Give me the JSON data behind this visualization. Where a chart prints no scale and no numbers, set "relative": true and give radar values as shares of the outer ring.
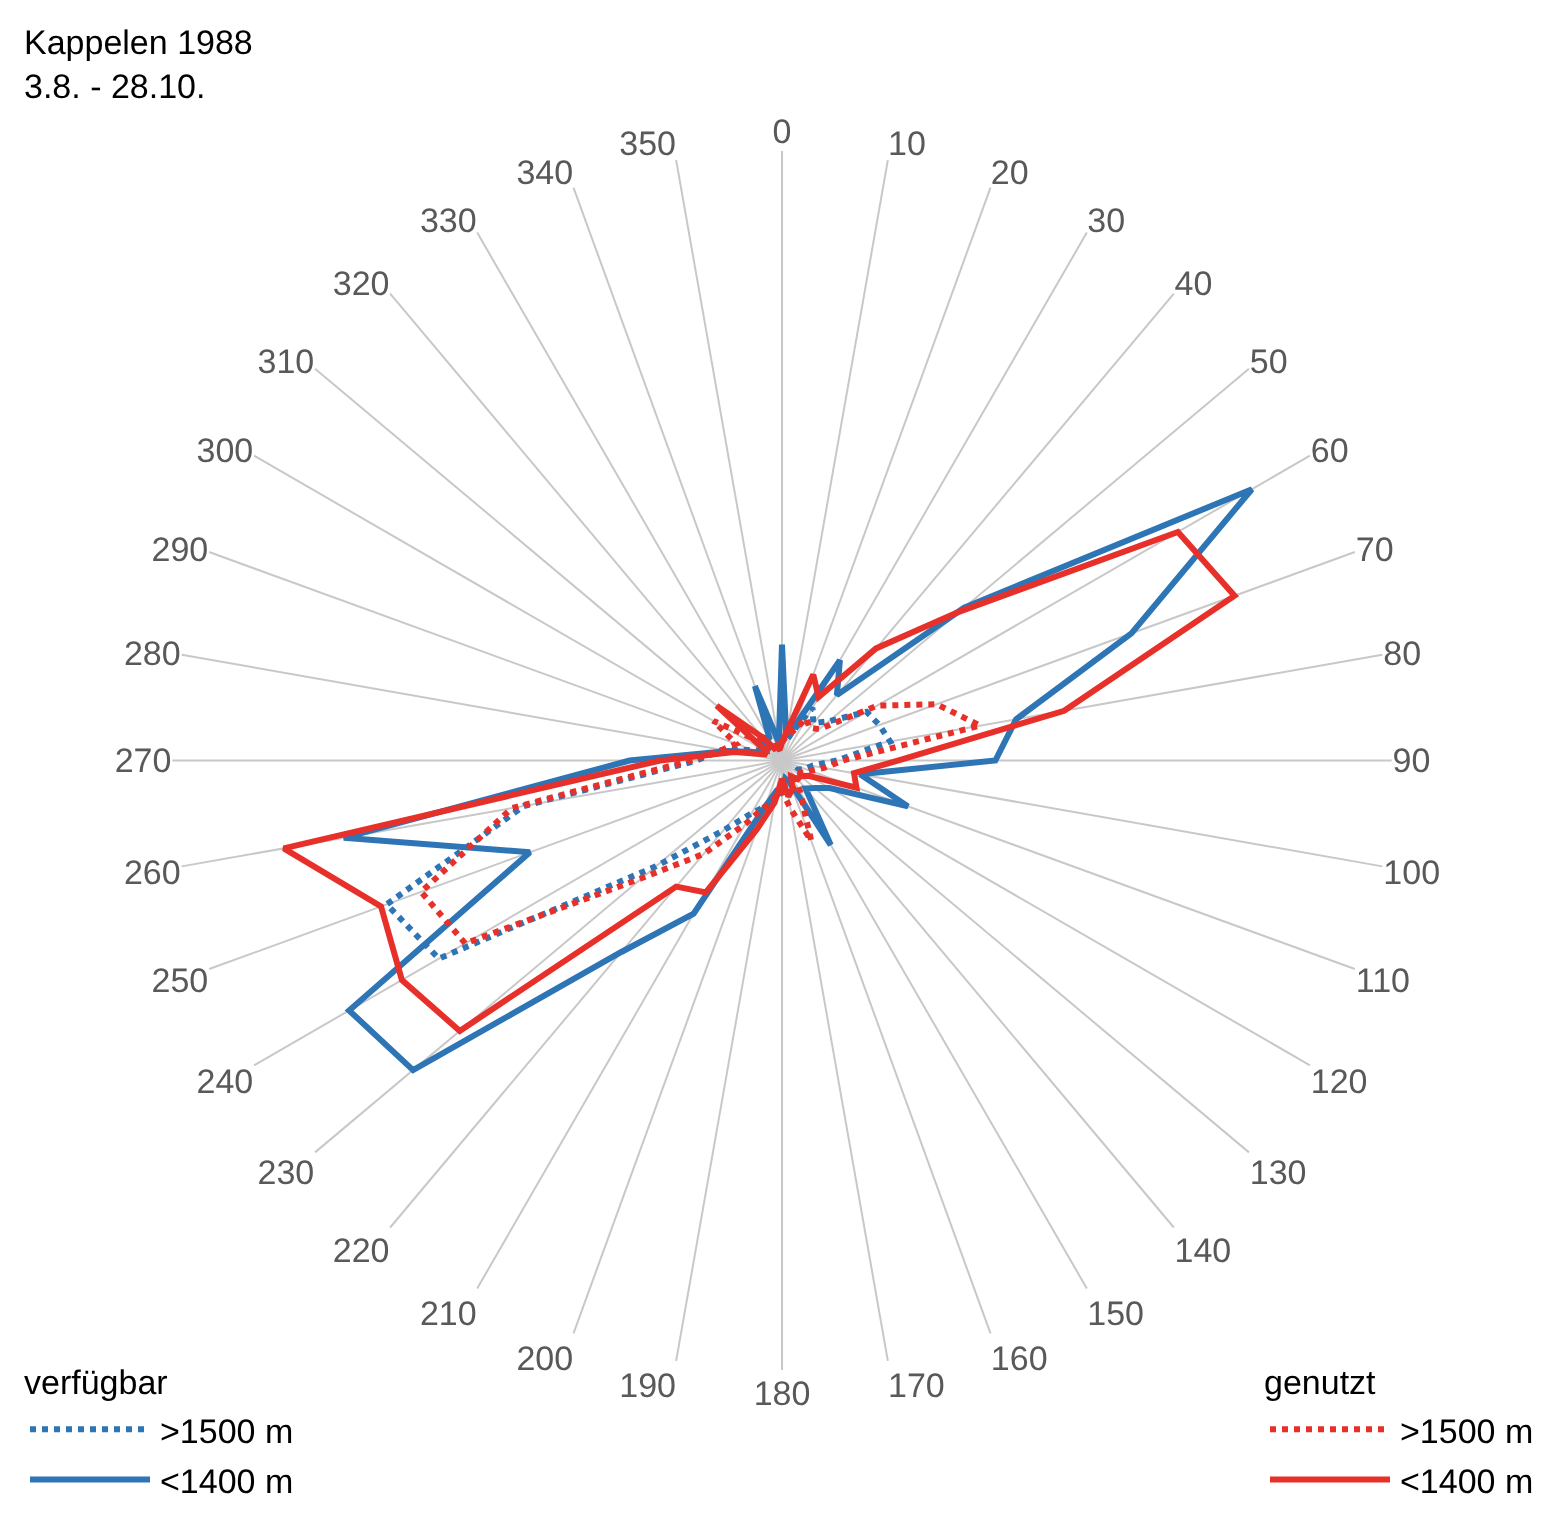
{
  "chart_data": {
    "type": "radar",
    "title": "Kappelen 1988",
    "subtitle": "3.8. - 28.10.",
    "relative": true,
    "categories": [
      "0",
      "10",
      "20",
      "30",
      "40",
      "50",
      "60",
      "70",
      "80",
      "90",
      "100",
      "110",
      "120",
      "130",
      "140",
      "150",
      "160",
      "170",
      "180",
      "190",
      "200",
      "210",
      "220",
      "230",
      "240",
      "250",
      "260",
      "270",
      "280",
      "290",
      "300",
      "310",
      "320",
      "330",
      "340",
      "350"
    ],
    "legend_title": [
      "verfügbar",
      "genutzt"
    ],
    "legend": [
      "bottom left",
      "bottom right"
    ],
    "grid": "x",
    "marker": "none",
    "series": [
      {
        "name": ">1500 m",
        "color": "#2e75b6",
        "line_style": "dotted",
        "values": [
          0.04,
          0.03,
          0.05,
          0.1,
          0.08,
          0.1,
          0.16,
          0.17,
          0.18,
          0.09,
          0.05,
          0.04,
          0.03,
          0.03,
          0.03,
          0.03,
          0.04,
          0.04,
          0.05,
          0.06,
          0.08,
          0.1,
          0.15,
          0.27,
          0.65,
          0.69,
          0.43,
          0.14,
          0.1,
          0.05,
          0.03,
          0.03,
          0.03,
          0.02,
          0.02,
          0.03
        ]
      },
      {
        "name": "<1400 m",
        "color": "#2e75b6",
        "line_style": "solid",
        "values": [
          0.19,
          0.04,
          0.06,
          0.19,
          0.14,
          0.39,
          0.89,
          0.61,
          0.39,
          0.35,
          0.13,
          0.22,
          0.09,
          0.07,
          0.06,
          0.16,
          0.04,
          0.03,
          0.05,
          0.05,
          0.08,
          0.29,
          0.41,
          0.79,
          0.82,
          0.44,
          0.73,
          0.25,
          0.09,
          0.04,
          0.03,
          0.04,
          0.05,
          0.04,
          0.13,
          0.03
        ]
      },
      {
        "name": ">1500 m",
        "color": "#e8302a",
        "line_style": "dotted",
        "values": [
          0.03,
          0.04,
          0.05,
          0.08,
          0.07,
          0.08,
          0.18,
          0.27,
          0.33,
          0.1,
          0.07,
          0.05,
          0.04,
          0.03,
          0.03,
          0.06,
          0.14,
          0.08,
          0.05,
          0.06,
          0.08,
          0.12,
          0.2,
          0.3,
          0.6,
          0.63,
          0.45,
          0.15,
          0.1,
          0.08,
          0.13,
          0.05,
          0.03,
          0.02,
          0.02,
          0.02
        ]
      },
      {
        "name": "<1400 m",
        "color": "#e8302a",
        "line_style": "solid",
        "values": [
          0.03,
          0.05,
          0.15,
          0.12,
          0.24,
          0.38,
          0.75,
          0.79,
          0.47,
          0.19,
          0.12,
          0.13,
          0.05,
          0.04,
          0.04,
          0.03,
          0.05,
          0.06,
          0.03,
          0.07,
          0.12,
          0.25,
          0.27,
          0.69,
          0.72,
          0.7,
          0.83,
          0.2,
          0.08,
          0.03,
          0.03,
          0.14,
          0.05,
          0.02,
          0.03,
          0.02
        ]
      }
    ]
  }
}
